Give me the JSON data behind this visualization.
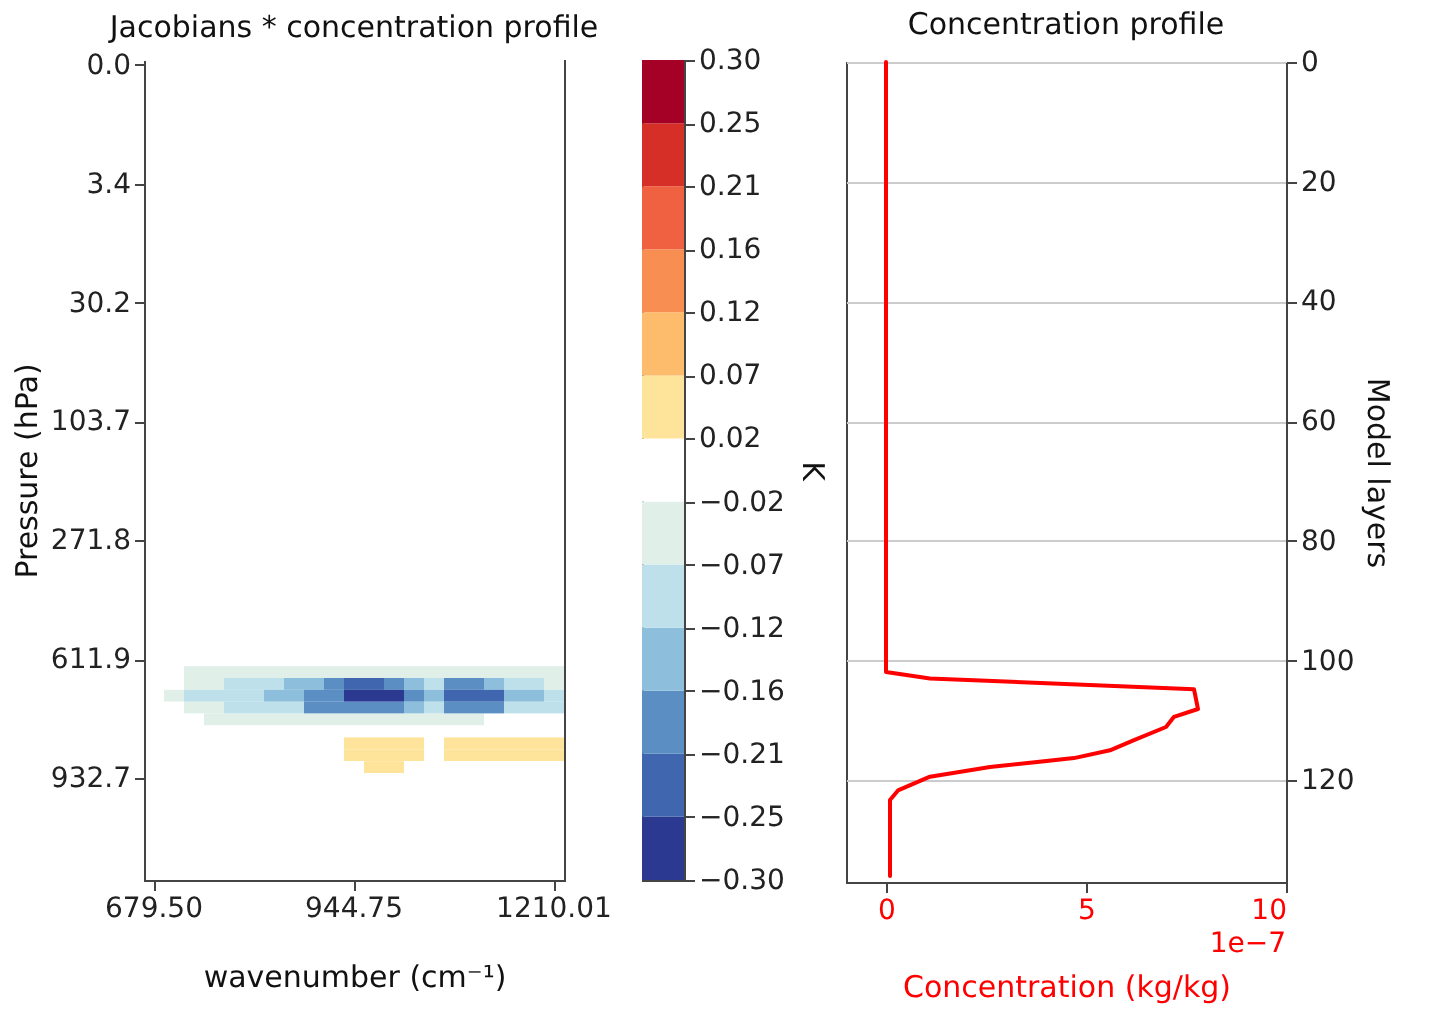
{
  "chart_data": [
    {
      "type": "heatmap",
      "title": "Jacobians * concentration profile",
      "xlabel": "wavenumber (cm⁻¹)",
      "ylabel": "Pressure (hPa)",
      "clabel": "K",
      "clim": [
        -0.3,
        0.3
      ],
      "cticks": [
        {
          "value": -0.3,
          "label": "−0.30"
        },
        {
          "value": -0.2538,
          "label": "−0.25"
        },
        {
          "value": -0.2077,
          "label": "−0.21"
        },
        {
          "value": -0.1615,
          "label": "−0.16"
        },
        {
          "value": -0.1154,
          "label": "−0.12"
        },
        {
          "value": -0.0692,
          "label": "−0.07"
        },
        {
          "value": -0.0231,
          "label": "−0.02"
        },
        {
          "value": 0.0231,
          "label": "0.02"
        },
        {
          "value": 0.0692,
          "label": "0.07"
        },
        {
          "value": 0.1154,
          "label": "0.12"
        },
        {
          "value": 0.1615,
          "label": "0.16"
        },
        {
          "value": 0.2077,
          "label": "0.21"
        },
        {
          "value": 0.2538,
          "label": "0.25"
        },
        {
          "value": 0.3,
          "label": "0.30"
        }
      ],
      "colors": [
        "#2b3990",
        "#3f66ae",
        "#5b8fc4",
        "#8dbfdc",
        "#bde0ea",
        "#e1efe9",
        "#ffffff",
        "#fee39a",
        "#fdbb6c",
        "#f98e52",
        "#ef6141",
        "#d52f28",
        "#a50026"
      ],
      "categories": [
        "679.50",
        null,
        null,
        null,
        null,
        null,
        null,
        null,
        null,
        null,
        "944.75",
        null,
        null,
        null,
        null,
        null,
        null,
        null,
        null,
        null,
        "1210.01"
      ],
      "y_categories": [
        "0.0",
        null,
        null,
        null,
        null,
        null,
        null,
        null,
        null,
        null,
        "3.4",
        null,
        null,
        null,
        null,
        null,
        null,
        null,
        null,
        null,
        "30.2",
        null,
        null,
        null,
        null,
        null,
        null,
        null,
        null,
        null,
        "103.7",
        null,
        null,
        null,
        null,
        null,
        null,
        null,
        null,
        null,
        "271.8",
        null,
        null,
        null,
        null,
        null,
        null,
        null,
        null,
        null,
        "611.9",
        null,
        null,
        null,
        null,
        null,
        null,
        null,
        null,
        null,
        "932.7",
        null,
        null,
        null,
        null,
        null,
        null,
        null,
        null
      ],
      "cells": [
        [
          0,
          0,
          0,
          0,
          0,
          0,
          0,
          0,
          0,
          0,
          0,
          0,
          0,
          0,
          0,
          0,
          0,
          0,
          0,
          0,
          0
        ],
        [
          0,
          0,
          0,
          0,
          0,
          0,
          0,
          0,
          0,
          0,
          0,
          0,
          0,
          0,
          0,
          0,
          0,
          0,
          0,
          0,
          0
        ],
        [
          0,
          0,
          0,
          0,
          0,
          0,
          0,
          0,
          0,
          0,
          0,
          0,
          0,
          0,
          0,
          0,
          0,
          0,
          0,
          0,
          0
        ],
        [
          0,
          0,
          0,
          0,
          0,
          0,
          0,
          0,
          0,
          0,
          0,
          0,
          0,
          0,
          0,
          0,
          0,
          0,
          0,
          0,
          0
        ],
        [
          0,
          0,
          0,
          0,
          0,
          0,
          0,
          0,
          0,
          0,
          0,
          0,
          0,
          0,
          0,
          0,
          0,
          0,
          0,
          0,
          0
        ],
        [
          0,
          0,
          0,
          0,
          0,
          0,
          0,
          0,
          0,
          0,
          0,
          0,
          0,
          0,
          0,
          0,
          0,
          0,
          0,
          0,
          0
        ],
        [
          0,
          0,
          0,
          0,
          0,
          0,
          0,
          0,
          0,
          0,
          0,
          0,
          0,
          0,
          0,
          0,
          0,
          0,
          0,
          0,
          0
        ],
        [
          0,
          0,
          0,
          0,
          0,
          0,
          0,
          0,
          0,
          0,
          0,
          0,
          0,
          0,
          0,
          0,
          0,
          0,
          0,
          0,
          0
        ],
        [
          0,
          0,
          0,
          0,
          0,
          0,
          0,
          0,
          0,
          0,
          0,
          0,
          0,
          0,
          0,
          0,
          0,
          0,
          0,
          0,
          0
        ],
        [
          0,
          0,
          0,
          0,
          0,
          0,
          0,
          0,
          0,
          0,
          0,
          0,
          0,
          0,
          0,
          0,
          0,
          0,
          0,
          0,
          0
        ],
        [
          0,
          0,
          0,
          0,
          0,
          0,
          0,
          0,
          0,
          0,
          0,
          0,
          0,
          0,
          0,
          0,
          0,
          0,
          0,
          0,
          0
        ],
        [
          0,
          0,
          0,
          0,
          0,
          0,
          0,
          0,
          0,
          0,
          0,
          0,
          0,
          0,
          0,
          0,
          0,
          0,
          0,
          0,
          0
        ],
        [
          0,
          0,
          0,
          0,
          0,
          0,
          0,
          0,
          0,
          0,
          0,
          0,
          0,
          0,
          0,
          0,
          0,
          0,
          0,
          0,
          0
        ],
        [
          0,
          0,
          0,
          0,
          0,
          0,
          0,
          0,
          0,
          0,
          0,
          0,
          0,
          0,
          0,
          0,
          0,
          0,
          0,
          0,
          0
        ],
        [
          0,
          0,
          0,
          0,
          0,
          0,
          0,
          0,
          0,
          0,
          0,
          0,
          0,
          0,
          0,
          0,
          0,
          0,
          0,
          0,
          0
        ],
        [
          0,
          0,
          0,
          0,
          0,
          0,
          0,
          0,
          0,
          0,
          0,
          0,
          0,
          0,
          0,
          0,
          0,
          0,
          0,
          0,
          0
        ],
        [
          0,
          0,
          0,
          0,
          0,
          0,
          0,
          0,
          0,
          0,
          0,
          0,
          0,
          0,
          0,
          0,
          0,
          0,
          0,
          0,
          0
        ],
        [
          0,
          0,
          0,
          0,
          0,
          0,
          0,
          0,
          0,
          0,
          0,
          0,
          0,
          0,
          0,
          0,
          0,
          0,
          0,
          0,
          0
        ],
        [
          0,
          0,
          0,
          0,
          0,
          0,
          0,
          0,
          0,
          0,
          0,
          0,
          0,
          0,
          0,
          0,
          0,
          0,
          0,
          0,
          0
        ],
        [
          0,
          0,
          0,
          0,
          0,
          0,
          0,
          0,
          0,
          0,
          0,
          0,
          0,
          0,
          0,
          0,
          0,
          0,
          0,
          0,
          0
        ],
        [
          0,
          0,
          0,
          0,
          0,
          0,
          0,
          0,
          0,
          0,
          0,
          0,
          0,
          0,
          0,
          0,
          0,
          0,
          0,
          0,
          0
        ],
        [
          0,
          0,
          0,
          0,
          0,
          0,
          0,
          0,
          0,
          0,
          0,
          0,
          0,
          0,
          0,
          0,
          0,
          0,
          0,
          0,
          0
        ],
        [
          0,
          0,
          0,
          0,
          0,
          0,
          0,
          0,
          0,
          0,
          0,
          0,
          0,
          0,
          0,
          0,
          0,
          0,
          0,
          0,
          0
        ],
        [
          0,
          0,
          0,
          0,
          0,
          0,
          0,
          0,
          0,
          0,
          0,
          0,
          0,
          0,
          0,
          0,
          0,
          0,
          0,
          0,
          0
        ],
        [
          0,
          0,
          0,
          0,
          0,
          0,
          0,
          0,
          0,
          0,
          0,
          0,
          0,
          0,
          0,
          0,
          0,
          0,
          0,
          0,
          0
        ],
        [
          0,
          0,
          0,
          0,
          0,
          0,
          0,
          0,
          0,
          0,
          0,
          0,
          0,
          0,
          0,
          0,
          0,
          0,
          0,
          0,
          0
        ],
        [
          0,
          0,
          0,
          0,
          0,
          0,
          0,
          0,
          0,
          0,
          0,
          0,
          0,
          0,
          0,
          0,
          0,
          0,
          0,
          0,
          0
        ],
        [
          0,
          0,
          0,
          0,
          0,
          0,
          0,
          0,
          0,
          0,
          0,
          0,
          0,
          0,
          0,
          0,
          0,
          0,
          0,
          0,
          0
        ],
        [
          0,
          0,
          0,
          0,
          0,
          0,
          0,
          0,
          0,
          0,
          0,
          0,
          0,
          0,
          0,
          0,
          0,
          0,
          0,
          0,
          0
        ],
        [
          0,
          0,
          0,
          0,
          0,
          0,
          0,
          0,
          0,
          0,
          0,
          0,
          0,
          0,
          0,
          0,
          0,
          0,
          0,
          0,
          0
        ],
        [
          0,
          0,
          0,
          0,
          0,
          0,
          0,
          0,
          0,
          0,
          0,
          0,
          0,
          0,
          0,
          0,
          0,
          0,
          0,
          0,
          0
        ],
        [
          0,
          0,
          0,
          0,
          0,
          0,
          0,
          0,
          0,
          0,
          0,
          0,
          0,
          0,
          0,
          0,
          0,
          0,
          0,
          0,
          0
        ],
        [
          0,
          0,
          0,
          0,
          0,
          0,
          0,
          0,
          0,
          0,
          0,
          0,
          0,
          0,
          0,
          0,
          0,
          0,
          0,
          0,
          0
        ],
        [
          0,
          0,
          0,
          0,
          0,
          0,
          0,
          0,
          0,
          0,
          0,
          0,
          0,
          0,
          0,
          0,
          0,
          0,
          0,
          0,
          0
        ],
        [
          0,
          0,
          0,
          0,
          0,
          0,
          0,
          0,
          0,
          0,
          0,
          0,
          0,
          0,
          0,
          0,
          0,
          0,
          0,
          0,
          0
        ],
        [
          0,
          0,
          0,
          0,
          0,
          0,
          0,
          0,
          0,
          0,
          0,
          0,
          0,
          0,
          0,
          0,
          0,
          0,
          0,
          0,
          0
        ],
        [
          0,
          0,
          0,
          0,
          0,
          0,
          0,
          0,
          0,
          0,
          0,
          0,
          0,
          0,
          0,
          0,
          0,
          0,
          0,
          0,
          0
        ],
        [
          0,
          0,
          0,
          0,
          0,
          0,
          0,
          0,
          0,
          0,
          0,
          0,
          0,
          0,
          0,
          0,
          0,
          0,
          0,
          0,
          0
        ],
        [
          0,
          0,
          0,
          0,
          0,
          0,
          0,
          0,
          0,
          0,
          0,
          0,
          0,
          0,
          0,
          0,
          0,
          0,
          0,
          0,
          0
        ],
        [
          0,
          0,
          0,
          0,
          0,
          0,
          0,
          0,
          0,
          0,
          0,
          0,
          0,
          0,
          0,
          0,
          0,
          0,
          0,
          0,
          0
        ],
        [
          0,
          0,
          0,
          0,
          0,
          0,
          0,
          0,
          0,
          0,
          0,
          0,
          0,
          0,
          0,
          0,
          0,
          0,
          0,
          0,
          0
        ],
        [
          0,
          0,
          0,
          0,
          0,
          0,
          0,
          0,
          0,
          0,
          0,
          0,
          0,
          0,
          0,
          0,
          0,
          0,
          0,
          0,
          0
        ],
        [
          0,
          0,
          0,
          0,
          0,
          0,
          0,
          0,
          0,
          0,
          0,
          0,
          0,
          0,
          0,
          0,
          0,
          0,
          0,
          0,
          0
        ],
        [
          0,
          0,
          0,
          0,
          0,
          0,
          0,
          0,
          0,
          0,
          0,
          0,
          0,
          0,
          0,
          0,
          0,
          0,
          0,
          0,
          0
        ],
        [
          0,
          0,
          0,
          0,
          0,
          0,
          0,
          0,
          0,
          0,
          0,
          0,
          0,
          0,
          0,
          0,
          0,
          0,
          0,
          0,
          0
        ],
        [
          0,
          0,
          0,
          0,
          0,
          0,
          0,
          0,
          0,
          0,
          0,
          0,
          0,
          0,
          0,
          0,
          0,
          0,
          0,
          0,
          0
        ],
        [
          0,
          0,
          0,
          0,
          0,
          0,
          0,
          0,
          0,
          0,
          0,
          0,
          0,
          0,
          0,
          0,
          0,
          0,
          0,
          0,
          0
        ],
        [
          0,
          0,
          0,
          0,
          0,
          0,
          0,
          0,
          0,
          0,
          0,
          0,
          0,
          0,
          0,
          0,
          0,
          0,
          0,
          0,
          0
        ],
        [
          0,
          0,
          0,
          0,
          0,
          0,
          0,
          0,
          0,
          0,
          0,
          0,
          0,
          0,
          0,
          0,
          0,
          0,
          0,
          0,
          0
        ],
        [
          0,
          0,
          0,
          0,
          0,
          0,
          0,
          0,
          0,
          0,
          0,
          0,
          0,
          0,
          0,
          0,
          0,
          0,
          0,
          0,
          0
        ],
        [
          0,
          0,
          0,
          0,
          0,
          0,
          0,
          0,
          0,
          0,
          0,
          0,
          0,
          0,
          0,
          0,
          0,
          0,
          0,
          0,
          0
        ],
        [
          0,
          0,
          -0.04,
          -0.04,
          -0.04,
          -0.04,
          -0.04,
          -0.04,
          -0.04,
          -0.04,
          -0.04,
          -0.04,
          -0.04,
          -0.04,
          -0.04,
          -0.04,
          -0.04,
          -0.04,
          -0.04,
          -0.04,
          -0.04
        ],
        [
          0,
          0,
          -0.04,
          -0.04,
          -0.1,
          -0.1,
          -0.1,
          -0.14,
          -0.14,
          -0.19,
          -0.23,
          -0.23,
          -0.19,
          -0.14,
          -0.1,
          -0.19,
          -0.19,
          -0.14,
          -0.1,
          -0.1,
          -0.04
        ],
        [
          0,
          -0.04,
          -0.1,
          -0.1,
          -0.1,
          -0.1,
          -0.14,
          -0.14,
          -0.19,
          -0.19,
          -0.28,
          -0.28,
          -0.28,
          -0.19,
          -0.14,
          -0.23,
          -0.23,
          -0.23,
          -0.14,
          -0.14,
          -0.1
        ],
        [
          0,
          0,
          -0.04,
          -0.04,
          -0.1,
          -0.1,
          -0.1,
          -0.1,
          -0.19,
          -0.19,
          -0.19,
          -0.19,
          -0.19,
          -0.14,
          -0.1,
          -0.19,
          -0.19,
          -0.19,
          -0.1,
          -0.1,
          -0.1
        ],
        [
          0,
          0,
          0,
          -0.04,
          -0.04,
          -0.04,
          -0.04,
          -0.04,
          -0.04,
          -0.04,
          -0.04,
          -0.04,
          -0.04,
          -0.04,
          -0.04,
          -0.04,
          -0.04,
          0,
          0,
          0,
          0
        ],
        [
          0,
          0,
          0,
          0,
          0,
          0,
          0,
          0,
          0,
          0,
          0,
          0,
          0,
          0,
          0,
          0,
          0,
          0,
          0,
          0,
          0
        ],
        [
          0,
          0,
          0,
          0,
          0,
          0,
          0,
          0,
          0,
          0,
          0.04,
          0.04,
          0.04,
          0.04,
          0,
          0.04,
          0.04,
          0.04,
          0.04,
          0.04,
          0.04
        ],
        [
          0,
          0,
          0,
          0,
          0,
          0,
          0,
          0,
          0,
          0,
          0.04,
          0.04,
          0.04,
          0.04,
          0,
          0.04,
          0.04,
          0.04,
          0.04,
          0.04,
          0.04
        ],
        [
          0,
          0,
          0,
          0,
          0,
          0,
          0,
          0,
          0,
          0,
          0,
          0.04,
          0.04,
          0,
          0,
          0,
          0,
          0,
          0,
          0,
          0
        ],
        [
          0,
          0,
          0,
          0,
          0,
          0,
          0,
          0,
          0,
          0,
          0,
          0,
          0,
          0,
          0,
          0,
          0,
          0,
          0,
          0,
          0
        ],
        [
          0,
          0,
          0,
          0,
          0,
          0,
          0,
          0,
          0,
          0,
          0,
          0,
          0,
          0,
          0,
          0,
          0,
          0,
          0,
          0,
          0
        ],
        [
          0,
          0,
          0,
          0,
          0,
          0,
          0,
          0,
          0,
          0,
          0,
          0,
          0,
          0,
          0,
          0,
          0,
          0,
          0,
          0,
          0
        ],
        [
          0,
          0,
          0,
          0,
          0,
          0,
          0,
          0,
          0,
          0,
          0,
          0,
          0,
          0,
          0,
          0,
          0,
          0,
          0,
          0,
          0
        ],
        [
          0,
          0,
          0,
          0,
          0,
          0,
          0,
          0,
          0,
          0,
          0,
          0,
          0,
          0,
          0,
          0,
          0,
          0,
          0,
          0,
          0
        ],
        [
          0,
          0,
          0,
          0,
          0,
          0,
          0,
          0,
          0,
          0,
          0,
          0,
          0,
          0,
          0,
          0,
          0,
          0,
          0,
          0,
          0
        ],
        [
          0,
          0,
          0,
          0,
          0,
          0,
          0,
          0,
          0,
          0,
          0,
          0,
          0,
          0,
          0,
          0,
          0,
          0,
          0,
          0,
          0
        ],
        [
          0,
          0,
          0,
          0,
          0,
          0,
          0,
          0,
          0,
          0,
          0,
          0,
          0,
          0,
          0,
          0,
          0,
          0,
          0,
          0,
          0
        ],
        [
          0,
          0,
          0,
          0,
          0,
          0,
          0,
          0,
          0,
          0,
          0,
          0,
          0,
          0,
          0,
          0,
          0,
          0,
          0,
          0,
          0
        ]
      ]
    },
    {
      "type": "line",
      "title": "Concentration profile",
      "xlabel": "Concentration (kg/kg)",
      "ylabel": "Model layers",
      "annotations": [
        "1e−7"
      ],
      "xlim": [
        -1,
        10
      ],
      "xticks": [
        0,
        5,
        10
      ],
      "ylim": [
        137,
        0
      ],
      "yticks": [
        0,
        20,
        40,
        60,
        80,
        100,
        120
      ],
      "grid": "y",
      "series": [
        {
          "color": "#ff0000",
          "x": [
            0,
            0,
            1.1,
            7.7,
            7.8,
            7.2,
            7.0,
            6.2,
            5.6,
            4.7,
            2.6,
            1.1,
            0.3,
            0.1,
            0.1
          ],
          "values": [
            0,
            101.9,
            103,
            104.8,
            108.1,
            109.4,
            111.1,
            113.3,
            115,
            116.3,
            117.8,
            119.4,
            121.7,
            123.3,
            136
          ]
        }
      ]
    }
  ]
}
